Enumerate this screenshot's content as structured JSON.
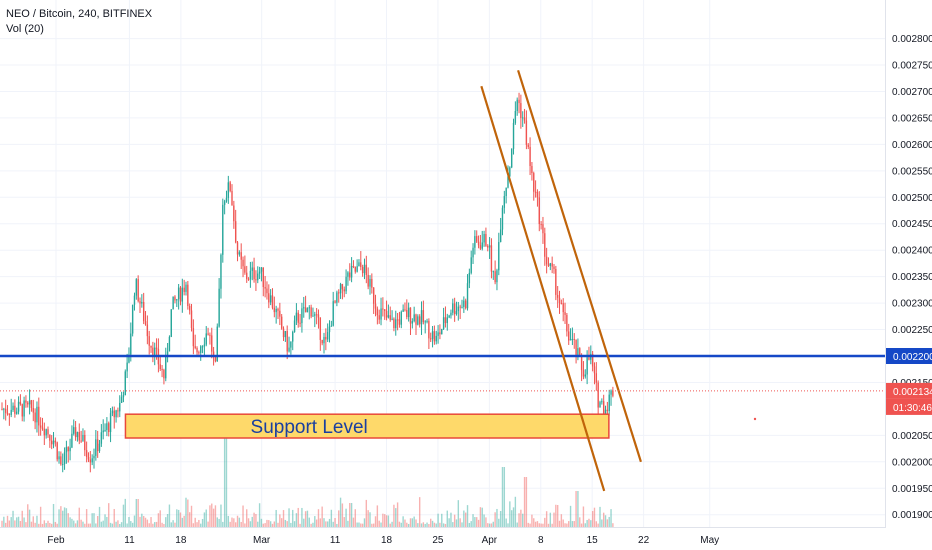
{
  "header": {
    "symbol_line": "NEO / Bitcoin, 240, BITFINEX",
    "volume_line": "Vol (20)"
  },
  "colors": {
    "up": "#26a69a",
    "down": "#ef5350",
    "support_line": "#1548c7",
    "channel": "#c0640a",
    "support_box_fill": "#fed96a",
    "support_box_stroke": "#e8483a",
    "support_text": "#1a3fa0",
    "last_price_bg": "#ef5350",
    "support_price_bg": "#1548c7"
  },
  "annotations": {
    "support_label": "Support Level",
    "support_price_label": "0.002200",
    "last_price_label": "0.002134",
    "countdown_label": "01:30:46"
  },
  "chart_data": {
    "type": "candlestick",
    "symbol": "NEO / Bitcoin",
    "interval": "240",
    "exchange": "BITFINEX",
    "y_axis": {
      "ticks": [
        "0.002800",
        "0.002750",
        "0.002700",
        "0.002650",
        "0.002600",
        "0.002550",
        "0.002500",
        "0.002450",
        "0.002400",
        "0.002350",
        "0.002300",
        "0.002250",
        "0.002150",
        "0.002050",
        "0.002000",
        "0.001950",
        "0.001900"
      ],
      "ylim": [
        0.00189,
        0.00282
      ]
    },
    "x_axis": {
      "ticks": [
        "Feb",
        "11",
        "18",
        "Mar",
        "11",
        "18",
        "25",
        "Apr",
        "8",
        "15",
        "22",
        "May"
      ]
    },
    "price_path": [
      [
        "Jan 29",
        0.0021
      ],
      [
        "Feb 1",
        0.00204
      ],
      [
        "Feb 2",
        0.00199
      ],
      [
        "Feb 4",
        0.00206
      ],
      [
        "Feb 6",
        0.00201
      ],
      [
        "Feb 8",
        0.00206
      ],
      [
        "Feb 10",
        0.00211
      ],
      [
        "Feb 11",
        0.00218
      ],
      [
        "Feb 12",
        0.00234
      ],
      [
        "Feb 14",
        0.00223
      ],
      [
        "Feb 16",
        0.00216
      ],
      [
        "Feb 17",
        0.00229
      ],
      [
        "Feb 19",
        0.00234
      ],
      [
        "Feb 20",
        0.0022
      ],
      [
        "Feb 22",
        0.00225
      ],
      [
        "Feb 23",
        0.00217
      ],
      [
        "Feb 24",
        0.0025
      ],
      [
        "Feb 25",
        0.00252
      ],
      [
        "Feb 26",
        0.00239
      ],
      [
        "Feb 27",
        0.00235
      ],
      [
        "Mar 1",
        0.00236
      ],
      [
        "Mar 3",
        0.00229
      ],
      [
        "Mar 5",
        0.00221
      ],
      [
        "Mar 6",
        0.00227
      ],
      [
        "Mar 8",
        0.00229
      ],
      [
        "Mar 10",
        0.00222
      ],
      [
        "Mar 11",
        0.00229
      ],
      [
        "Mar 13",
        0.00235
      ],
      [
        "Mar 15",
        0.00237
      ],
      [
        "Mar 17",
        0.00229
      ],
      [
        "Mar 19",
        0.00226
      ],
      [
        "Mar 21",
        0.00228
      ],
      [
        "Mar 23",
        0.00227
      ],
      [
        "Mar 25",
        0.00223
      ],
      [
        "Mar 27",
        0.00229
      ],
      [
        "Mar 29",
        0.0023
      ],
      [
        "Mar 30",
        0.00241
      ],
      [
        "Apr 1",
        0.00242
      ],
      [
        "Apr 2",
        0.00233
      ],
      [
        "Apr 3",
        0.00249
      ],
      [
        "Apr 4",
        0.00256
      ],
      [
        "Apr 5",
        0.00269
      ],
      [
        "Apr 6",
        0.00264
      ],
      [
        "Apr 7",
        0.00254
      ],
      [
        "Apr 8",
        0.00247
      ],
      [
        "Apr 9",
        0.00238
      ],
      [
        "Apr 10",
        0.00235
      ],
      [
        "Apr 11",
        0.00229
      ],
      [
        "Apr 12",
        0.00224
      ],
      [
        "Apr 13",
        0.00221
      ],
      [
        "Apr 14",
        0.00217
      ],
      [
        "Apr 15",
        0.0022
      ],
      [
        "Apr 16",
        0.00212
      ],
      [
        "Apr 17",
        0.0021
      ],
      [
        "Apr 18",
        0.002134
      ]
    ],
    "volume_spikes": [
      [
        "Feb 24",
        0.55
      ],
      [
        "Apr 3",
        0.3
      ],
      [
        "Apr 6",
        0.25
      ],
      [
        "Apr 13",
        0.18
      ],
      [
        "Feb 12",
        0.14
      ],
      [
        "Mar 13",
        0.12
      ]
    ],
    "support_price": 0.0022,
    "last_price": 0.002134,
    "support_zone": {
      "from": "Feb 11",
      "to": "Apr 17",
      "low": 0.002045,
      "high": 0.00209
    },
    "channel_lines": [
      {
        "start": [
          "Apr 1",
          0.00271
        ],
        "end": [
          "Apr 15",
          0.001945
        ]
      },
      {
        "start": [
          "Apr 6",
          0.00274
        ],
        "end": [
          "Apr 20",
          0.002
        ]
      }
    ]
  }
}
